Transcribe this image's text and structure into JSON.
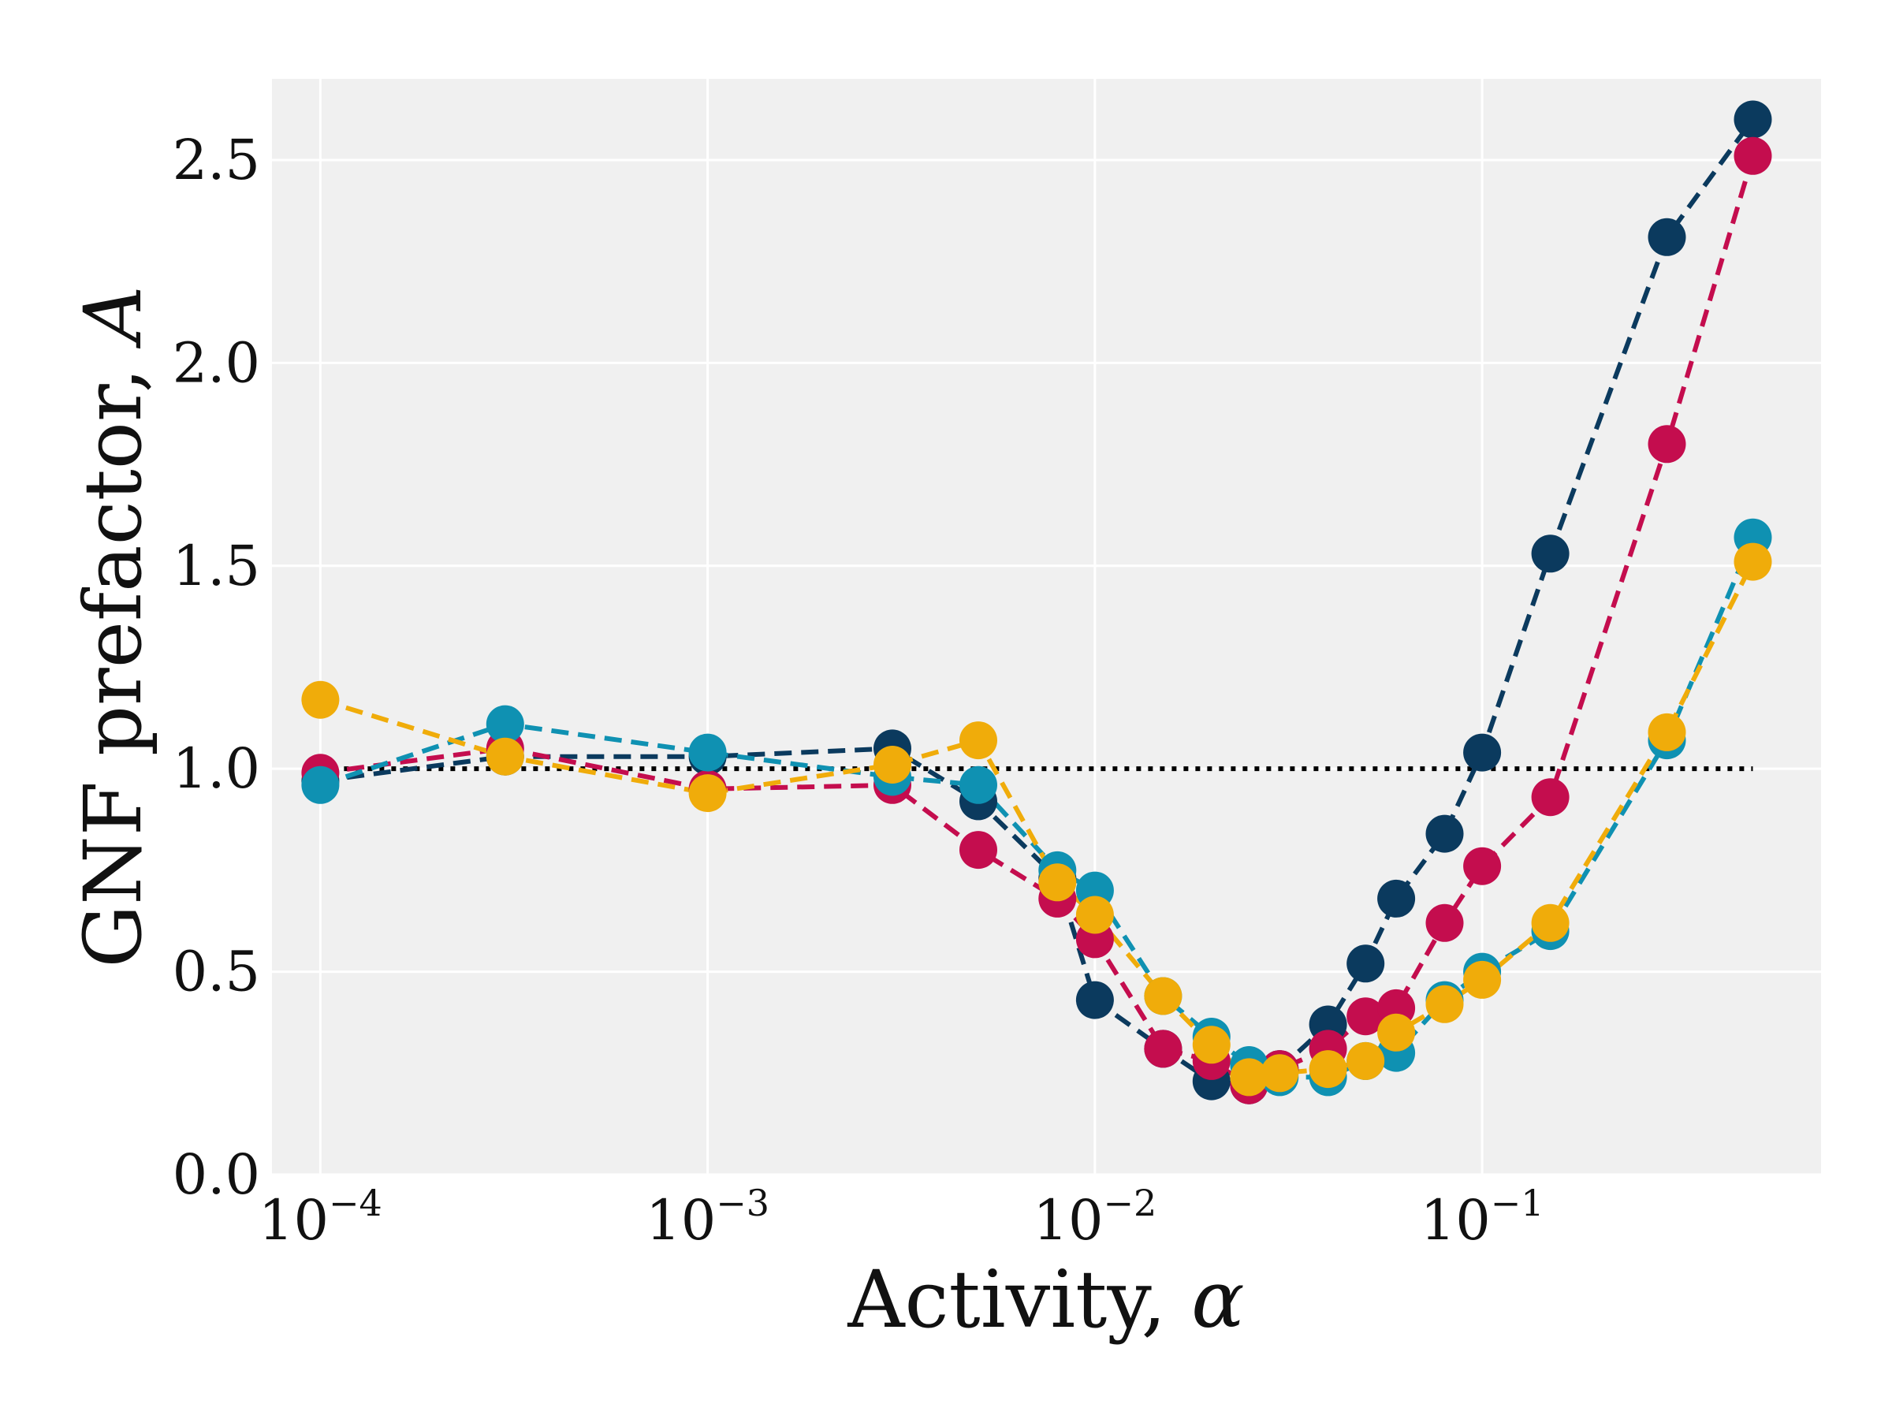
{
  "chart_data": {
    "type": "line",
    "xscale": "log",
    "xlabel": "Activity, ",
    "xlabel_symbol": "α",
    "ylabel": "GNF prefactor, ",
    "ylabel_symbol": "A",
    "xlim": [
      7.5e-05,
      0.75
    ],
    "ylim": [
      0,
      2.7
    ],
    "grid": true,
    "legend": "none",
    "background": "#f0f0f0",
    "x_ticks": [
      {
        "value": 0.0001,
        "base": "10",
        "exp": "−4"
      },
      {
        "value": 0.001,
        "base": "10",
        "exp": "−3"
      },
      {
        "value": 0.01,
        "base": "10",
        "exp": "−2"
      },
      {
        "value": 0.1,
        "base": "10",
        "exp": "−1"
      }
    ],
    "y_ticks": [
      {
        "value": 0.0,
        "label": "0.0"
      },
      {
        "value": 0.5,
        "label": "0.5"
      },
      {
        "value": 1.0,
        "label": "1.0"
      },
      {
        "value": 1.5,
        "label": "1.5"
      },
      {
        "value": 2.0,
        "label": "2.0"
      },
      {
        "value": 2.5,
        "label": "2.5"
      }
    ],
    "reference_line": {
      "y": 1.0,
      "x": [
        0.0001,
        0.5
      ],
      "color": "#000000",
      "style": "dotted"
    },
    "series": [
      {
        "color": "#0b3a5e",
        "x": [
          0.0001,
          0.0003,
          0.001,
          0.003,
          0.005,
          0.008,
          0.01,
          0.015,
          0.02,
          0.025,
          0.03,
          0.04,
          0.05,
          0.06,
          0.08,
          0.1,
          0.15,
          0.3,
          0.5
        ],
        "y": [
          0.97,
          1.03,
          1.03,
          1.05,
          0.92,
          0.73,
          0.43,
          0.31,
          0.23,
          0.22,
          0.26,
          0.37,
          0.52,
          0.68,
          0.84,
          1.04,
          1.53,
          2.31,
          2.6
        ]
      },
      {
        "color": "#c40d4e",
        "x": [
          0.0001,
          0.0003,
          0.001,
          0.003,
          0.005,
          0.008,
          0.01,
          0.015,
          0.02,
          0.025,
          0.03,
          0.04,
          0.05,
          0.06,
          0.08,
          0.1,
          0.15,
          0.3,
          0.5
        ],
        "y": [
          0.99,
          1.05,
          0.95,
          0.96,
          0.8,
          0.68,
          0.58,
          0.31,
          0.28,
          0.22,
          0.26,
          0.31,
          0.39,
          0.41,
          0.62,
          0.76,
          0.93,
          1.8,
          2.51
        ]
      },
      {
        "color": "#0f91b2",
        "x": [
          0.0001,
          0.0003,
          0.001,
          0.003,
          0.005,
          0.008,
          0.01,
          0.015,
          0.02,
          0.025,
          0.03,
          0.04,
          0.05,
          0.06,
          0.08,
          0.1,
          0.15,
          0.3,
          0.5
        ],
        "y": [
          0.96,
          1.11,
          1.04,
          0.98,
          0.96,
          0.75,
          0.7,
          0.44,
          0.34,
          0.27,
          0.24,
          0.24,
          0.28,
          0.3,
          0.43,
          0.5,
          0.6,
          1.07,
          1.57
        ]
      },
      {
        "color": "#f0ac0a",
        "x": [
          0.0001,
          0.0003,
          0.001,
          0.003,
          0.005,
          0.008,
          0.01,
          0.015,
          0.02,
          0.025,
          0.03,
          0.04,
          0.05,
          0.06,
          0.08,
          0.1,
          0.15,
          0.3,
          0.5
        ],
        "y": [
          1.17,
          1.03,
          0.94,
          1.01,
          1.07,
          0.72,
          0.64,
          0.44,
          0.32,
          0.24,
          0.25,
          0.26,
          0.28,
          0.35,
          0.42,
          0.48,
          0.62,
          1.09,
          1.51
        ]
      }
    ]
  }
}
